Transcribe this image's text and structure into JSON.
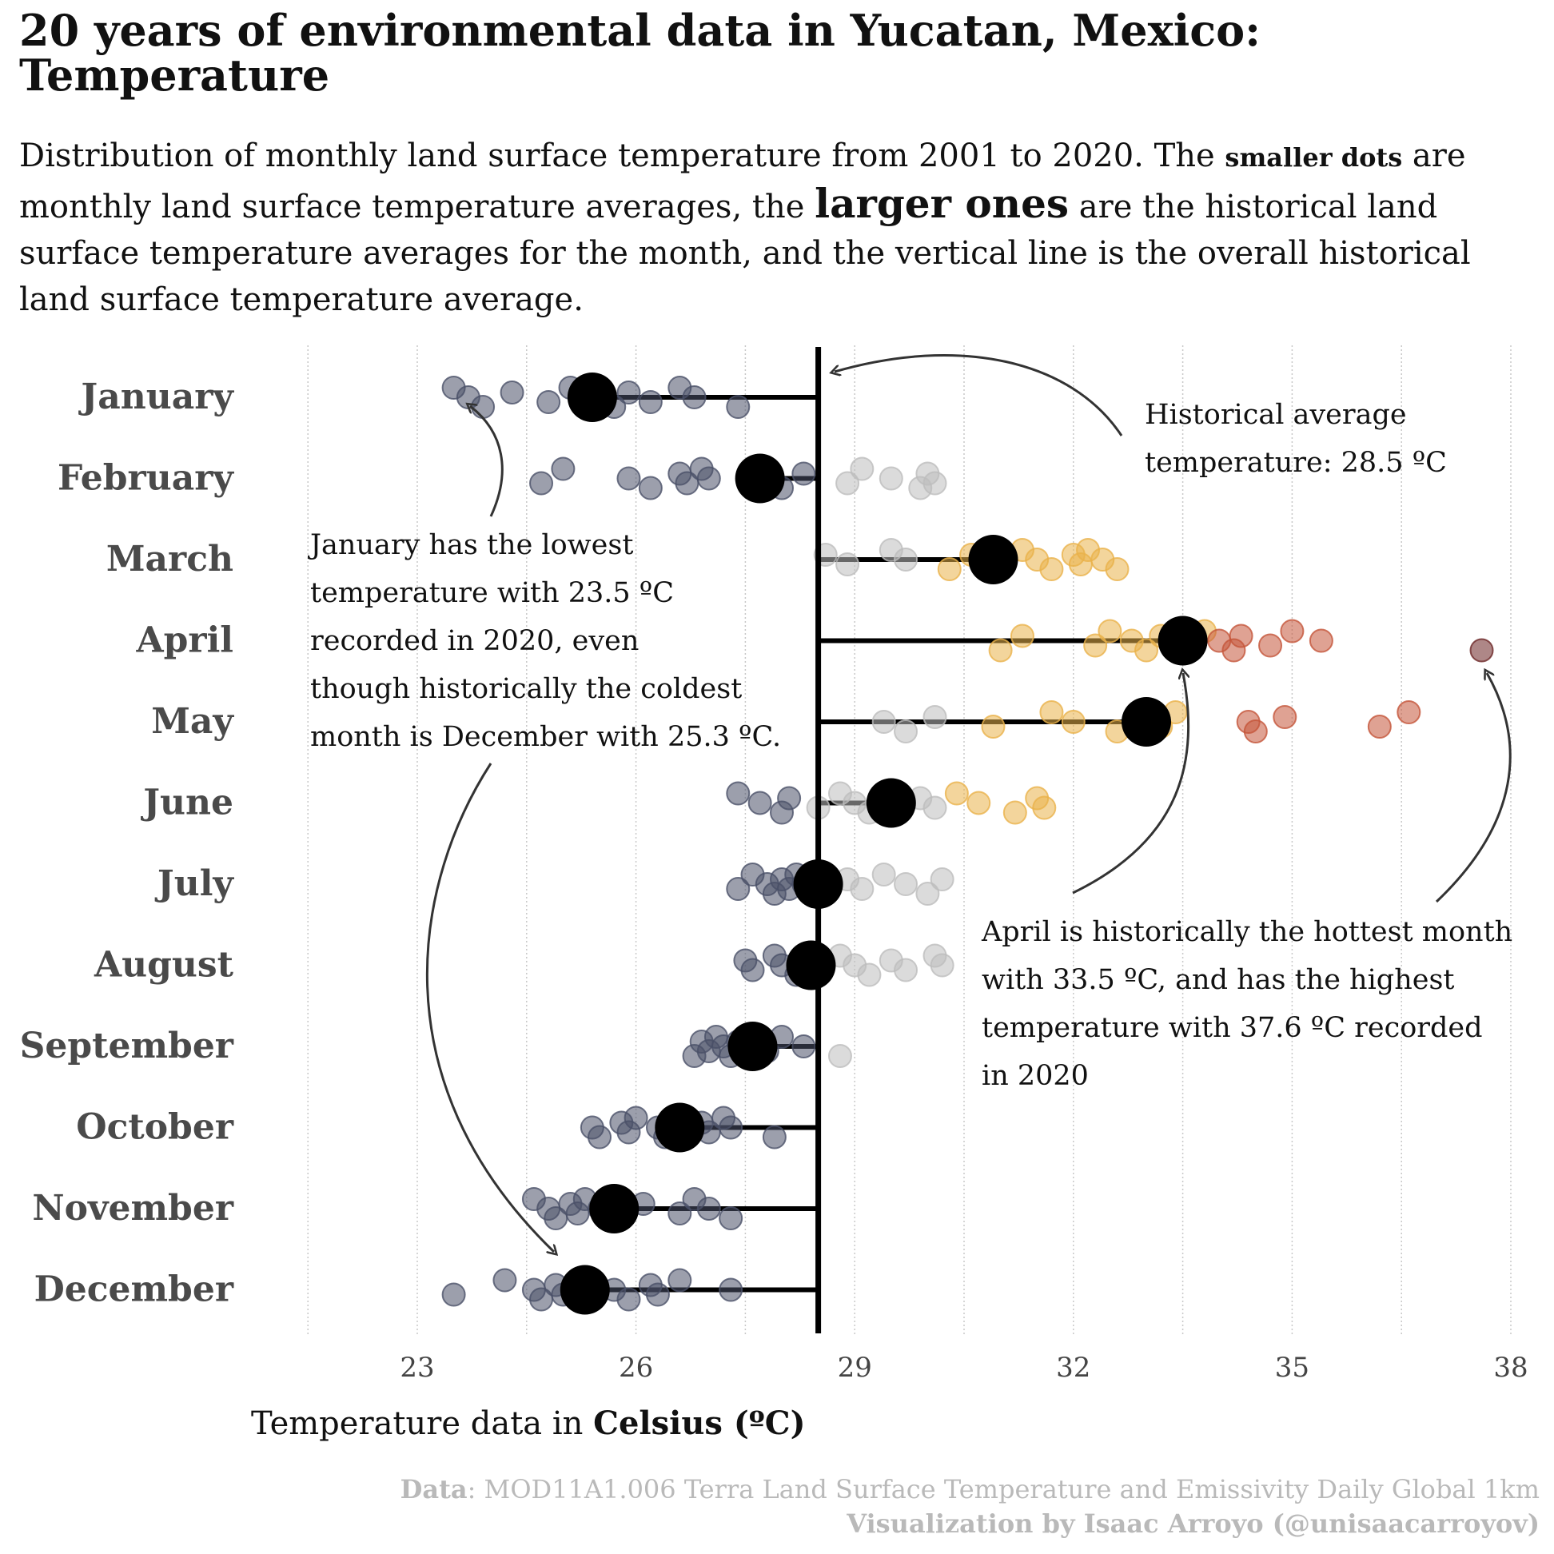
{
  "title_line1": "20 years of environmental data in Yucatan, Mexico:",
  "title_line2": "Temperature",
  "subtitle": {
    "part1": "Distribution of monthly land surface temperature from 2001 to 2020. The ",
    "small_dots": "smaller dots",
    "part2": " are monthly land surface temperature averages, the ",
    "larger_ones": "larger ones",
    "part3": " are the historical land surface temperature averages for the month, and the vertical line is the overall historical land surface temperature average."
  },
  "xlabel_prefix": "Temperature data in ",
  "xlabel_bold": "Celsius (ºC)",
  "caption": {
    "data_label": "Data",
    "data_text": ": MOD11A1.006 Terra Land Surface Temperature and Emissivity Daily Global 1km",
    "credit": "Visualization by Isaac Arroyo (@unisaacarroyov)"
  },
  "annotations": {
    "historical": [
      "Historical average",
      "temperature: 28.5 ºC"
    ],
    "january": [
      "January has the lowest",
      "temperature with 23.5 ºC",
      "recorded in 2020, even",
      "though historically the coldest",
      "month is December with 25.3 ºC."
    ],
    "april": [
      "April is historically the hottest month",
      "with 33.5 ºC, and has the highest",
      "temperature with 37.6 ºC recorded",
      "in 2020"
    ]
  },
  "colors": {
    "cold": "#4a5068",
    "neutral": "#bdbdbd",
    "warm": "#eab24a",
    "hot": "#c4553a",
    "extreme": "#6b2525",
    "mean": "#000000"
  },
  "chart_data": {
    "type": "scatter",
    "xlim": [
      21.5,
      38
    ],
    "xticks": [
      23,
      26,
      29,
      32,
      35,
      38
    ],
    "overall_mean": 28.5,
    "grid": "vertical dotted",
    "series": [
      {
        "month": "January",
        "mean": 25.4,
        "points": [
          23.5,
          23.7,
          23.9,
          24.3,
          24.8,
          25.1,
          25.5,
          25.7,
          25.9,
          26.2,
          26.6,
          26.8,
          27.4
        ]
      },
      {
        "month": "February",
        "mean": 27.7,
        "points": [
          24.7,
          25.0,
          25.9,
          26.2,
          26.6,
          26.7,
          26.9,
          27.0,
          28.0,
          28.3,
          28.9,
          29.1,
          29.5,
          29.9,
          30.0,
          30.1
        ]
      },
      {
        "month": "March",
        "mean": 30.9,
        "points": [
          28.6,
          28.9,
          29.5,
          29.7,
          30.3,
          30.6,
          30.8,
          31.3,
          31.5,
          31.7,
          32.0,
          32.1,
          32.2,
          32.4,
          32.6
        ]
      },
      {
        "month": "April",
        "mean": 33.5,
        "points": [
          31.0,
          31.3,
          32.3,
          32.5,
          32.8,
          33.0,
          33.2,
          33.6,
          33.8,
          34.0,
          34.2,
          34.3,
          34.7,
          35.0,
          35.4,
          37.6
        ]
      },
      {
        "month": "May",
        "mean": 33.0,
        "points": [
          29.4,
          29.7,
          30.1,
          30.9,
          31.7,
          32.0,
          32.6,
          32.9,
          33.2,
          33.4,
          34.4,
          34.5,
          34.9,
          36.2,
          36.6
        ]
      },
      {
        "month": "June",
        "mean": 29.5,
        "points": [
          27.4,
          27.7,
          28.0,
          28.1,
          28.5,
          28.8,
          29.0,
          29.2,
          29.9,
          30.1,
          30.4,
          30.7,
          31.2,
          31.5,
          31.6
        ]
      },
      {
        "month": "July",
        "mean": 28.5,
        "points": [
          27.4,
          27.6,
          27.8,
          27.9,
          28.0,
          28.1,
          28.2,
          28.3,
          28.6,
          28.9,
          29.1,
          29.4,
          29.7,
          30.0,
          30.2
        ]
      },
      {
        "month": "August",
        "mean": 28.4,
        "points": [
          27.5,
          27.6,
          27.9,
          28.0,
          28.2,
          28.3,
          28.5,
          28.8,
          29.0,
          29.2,
          29.5,
          29.7,
          30.1,
          30.2
        ]
      },
      {
        "month": "September",
        "mean": 27.6,
        "points": [
          26.8,
          26.9,
          27.0,
          27.1,
          27.2,
          27.3,
          27.4,
          27.8,
          28.0,
          28.3,
          28.8
        ]
      },
      {
        "month": "October",
        "mean": 26.6,
        "points": [
          25.4,
          25.5,
          25.8,
          25.9,
          26.0,
          26.3,
          26.4,
          26.9,
          27.0,
          27.2,
          27.3,
          27.9
        ]
      },
      {
        "month": "November",
        "mean": 25.7,
        "points": [
          24.6,
          24.8,
          24.9,
          25.1,
          25.2,
          25.3,
          25.5,
          25.8,
          26.1,
          26.6,
          26.8,
          27.0,
          27.3
        ]
      },
      {
        "month": "December",
        "mean": 25.3,
        "points": [
          23.5,
          24.2,
          24.6,
          24.7,
          24.9,
          25.0,
          25.4,
          25.7,
          25.9,
          26.2,
          26.3,
          26.6,
          27.3
        ]
      }
    ]
  }
}
